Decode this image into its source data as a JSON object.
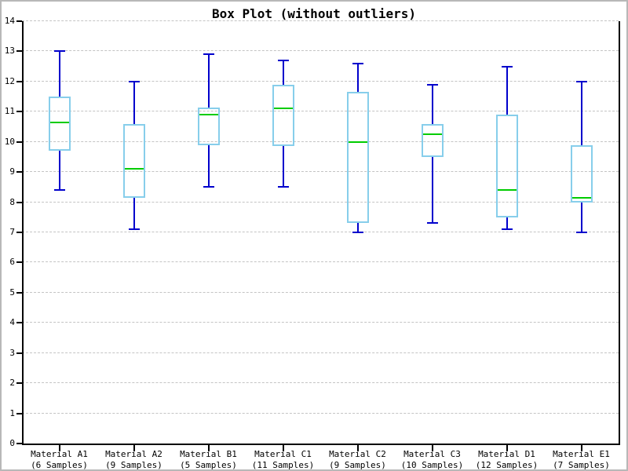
{
  "chart_data": {
    "type": "boxplot",
    "title": "Box Plot (without outliers)",
    "xlabel": "",
    "ylabel": "",
    "ylim": [
      0,
      14
    ],
    "y_ticks": [
      0,
      1,
      2,
      3,
      4,
      5,
      6,
      7,
      8,
      9,
      10,
      11,
      12,
      13,
      14
    ],
    "grid": {
      "horizontal": true,
      "vertical": false,
      "style": "dashed"
    },
    "legend": "none",
    "categories": [
      "Material A1",
      "Material A2",
      "Material B1",
      "Material C1",
      "Material C2",
      "Material C3",
      "Material D1",
      "Material E1"
    ],
    "category_sublabels": [
      "(6 Samples)",
      "(9 Samples)",
      "(5 Samples)",
      "(11 Samples)",
      "(9 Samples)",
      "(10 Samples)",
      "(12 Samples)",
      "(7 Samples)"
    ],
    "boxes": [
      {
        "category": "Material A1",
        "samples": 6,
        "whisker_low": 8.4,
        "q1": 9.7,
        "median": 10.65,
        "q3": 11.5,
        "whisker_high": 13.0
      },
      {
        "category": "Material A2",
        "samples": 9,
        "whisker_low": 7.1,
        "q1": 8.15,
        "median": 9.1,
        "q3": 10.6,
        "whisker_high": 12.0
      },
      {
        "category": "Material B1",
        "samples": 5,
        "whisker_low": 8.5,
        "q1": 9.9,
        "median": 10.9,
        "q3": 11.15,
        "whisker_high": 12.9
      },
      {
        "category": "Material C1",
        "samples": 11,
        "whisker_low": 8.5,
        "q1": 9.85,
        "median": 11.1,
        "q3": 11.9,
        "whisker_high": 12.7
      },
      {
        "category": "Material C2",
        "samples": 9,
        "whisker_low": 7.0,
        "q1": 7.3,
        "median": 10.0,
        "q3": 11.65,
        "whisker_high": 12.6
      },
      {
        "category": "Material C3",
        "samples": 10,
        "whisker_low": 7.3,
        "q1": 9.5,
        "median": 10.25,
        "q3": 10.6,
        "whisker_high": 11.9
      },
      {
        "category": "Material D1",
        "samples": 12,
        "whisker_low": 7.1,
        "q1": 7.5,
        "median": 8.4,
        "q3": 10.9,
        "whisker_high": 12.5
      },
      {
        "category": "Material E1",
        "samples": 7,
        "whisker_low": 7.0,
        "q1": 8.0,
        "median": 8.15,
        "q3": 9.9,
        "whisker_high": 12.0
      }
    ],
    "colors": {
      "whisker": "#0000cc",
      "box_outline": "#87ceeb",
      "median": "#00cc00",
      "grid": "#c4c4c4",
      "axis": "#000000",
      "text": "#000000",
      "background": "#ffffff",
      "frame_border": "#b8b8b8"
    }
  }
}
